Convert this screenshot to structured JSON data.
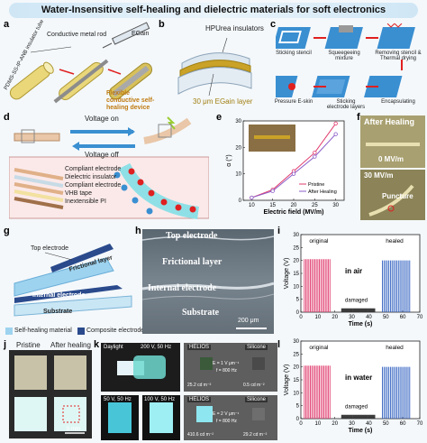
{
  "title": "Water-Insensitive self-healing and dielectric materials for soft electronics",
  "panel_letters": [
    "a",
    "b",
    "c",
    "d",
    "e",
    "f",
    "g",
    "h",
    "i",
    "j",
    "k",
    "l"
  ],
  "colors": {
    "accent": "#3a8fd1",
    "gold": "#c9a227",
    "healed": "#3060c0",
    "original": "#e03c6e",
    "red_arrow": "#e02020"
  },
  "panel_a": {
    "tube_label": "PDMS-SS-IP-ANB insulator tube",
    "rod_label": "Conductive metal rod",
    "egain_label": "EGain",
    "device_label": "Flexible conductive self-healing device"
  },
  "panel_b": {
    "insulators_label": "HPUrea insulators",
    "egain_layer_label": "30 μm EGain layer"
  },
  "panel_c": {
    "steps": [
      "Sticking stencil",
      "Squeegeeing mixture",
      "Removing stencil & Thermal drying",
      "Encapsulating",
      "Sticking electrode layers",
      "Pressure E-skin"
    ]
  },
  "panel_d": {
    "voltage_on": "Voltage on",
    "voltage_off": "Voltage off",
    "layers": [
      "Compliant electrode",
      "Dielectric insulator",
      "Compliant electrode",
      "VHB tape",
      "Inextensible PI"
    ]
  },
  "panel_e": {
    "ylabel": "α (°)",
    "xlabel": "Electric field (MV/m)",
    "legend": [
      "Pristine",
      "After Healing"
    ]
  },
  "panel_f": {
    "after_healing": "After Healing",
    "field_0": "0 MV/m",
    "field_30": "30 MV/m",
    "puncture": "Puncture"
  },
  "panel_g": {
    "top_electrode": "Top electrode",
    "frictional": "Frictional layer",
    "internal": "Internal electrode",
    "substrate": "Substrate",
    "legend_self_healing": "Self-healing material",
    "legend_composite": "Composite electrode"
  },
  "panel_h": {
    "top_electrode": "Top electrode",
    "frictional": "Frictional layer",
    "internal": "Internal electrode",
    "substrate": "Substrate",
    "scale": "200 μm"
  },
  "panel_i": {
    "original": "original",
    "healed": "healed",
    "damaged": "damaged",
    "condition": "in air",
    "ylabel": "Voltage (V)",
    "xlabel": "Time (s)"
  },
  "panel_j": {
    "original": "original",
    "healed": "healed",
    "damaged": "damaged",
    "condition": "in water",
    "ylabel": "Voltage (V)",
    "xlabel": "Time (s)"
  },
  "panel_k": {
    "pristine": "Pristine",
    "after_healing": "After healing",
    "scale": "5 mm"
  },
  "panel_l": {
    "daylight": "Daylight",
    "v200": "200 V, 50 Hz",
    "v50": "50 V, 50 Hz",
    "v100": "100 V, 50 Hz",
    "helios": "HELIOS",
    "silicone": "Silicone",
    "e1": "E = 1 V μm⁻¹",
    "f1": "f = 800 Hz",
    "e2": "E = 2 V μm⁻¹",
    "f2": "f = 800 Hz",
    "val1": "25.2 cd m⁻²",
    "val2": "0.5 cd m⁻²",
    "val3": "410.6 cd m⁻²",
    "val4": "29.2 cd m⁻²"
  },
  "chart_data": [
    {
      "type": "line",
      "panel": "e",
      "xlabel": "Electric field (MV/m)",
      "ylabel": "α (°)",
      "xlim": [
        8,
        32
      ],
      "ylim": [
        0,
        30
      ],
      "xticks": [
        10,
        15,
        20,
        25,
        30
      ],
      "yticks": [
        0,
        10,
        20,
        30
      ],
      "x": [
        10,
        15,
        20,
        25,
        30
      ],
      "series": [
        {
          "name": "Pristine",
          "values": [
            1,
            4,
            11,
            18,
            29
          ],
          "color": "#e03c6e"
        },
        {
          "name": "After Healing",
          "values": [
            1,
            3.5,
            10,
            16.5,
            25
          ],
          "color": "#8a5cc8"
        }
      ],
      "legend": "bottom-right"
    },
    {
      "type": "line",
      "panel": "i",
      "xlabel": "Time (s)",
      "ylabel": "Voltage (V)",
      "xlim": [
        0,
        70
      ],
      "ylim": [
        0,
        30
      ],
      "xticks": [
        0,
        10,
        20,
        30,
        40,
        50,
        60,
        70
      ],
      "yticks": [
        0,
        5,
        10,
        15,
        20,
        25,
        30
      ],
      "segments": [
        {
          "name": "original",
          "t_start": 2,
          "t_end": 18,
          "peak": 20.5,
          "color": "#e03c6e"
        },
        {
          "name": "damaged",
          "t_start": 24,
          "t_end": 44,
          "peak": 1.5,
          "color": "#333333"
        },
        {
          "name": "healed",
          "t_start": 48,
          "t_end": 65,
          "peak": 20,
          "color": "#3060c0"
        }
      ]
    },
    {
      "type": "line",
      "panel": "j",
      "xlabel": "Time (s)",
      "ylabel": "Voltage (V)",
      "xlim": [
        0,
        70
      ],
      "ylim": [
        0,
        30
      ],
      "xticks": [
        0,
        10,
        20,
        30,
        40,
        50,
        60,
        70
      ],
      "yticks": [
        0,
        5,
        10,
        15,
        20,
        25,
        30
      ],
      "segments": [
        {
          "name": "original",
          "t_start": 2,
          "t_end": 18,
          "peak": 20.5,
          "color": "#e03c6e"
        },
        {
          "name": "damaged",
          "t_start": 24,
          "t_end": 44,
          "peak": 1.5,
          "color": "#333333"
        },
        {
          "name": "healed",
          "t_start": 48,
          "t_end": 65,
          "peak": 20,
          "color": "#3060c0"
        }
      ]
    }
  ]
}
